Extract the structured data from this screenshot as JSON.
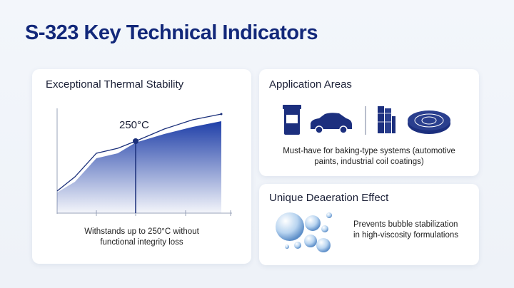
{
  "title": "S-323 Key Technical Indicators",
  "thermal": {
    "heading": "Exceptional Thermal Stability",
    "annotation": "250°C",
    "caption": [
      "Withstands up to 250°C without",
      "functional integrity loss"
    ]
  },
  "application": {
    "heading": "Application Areas",
    "description": [
      "Must-have for baking-type systems (automotive",
      "paints, industrial coil coatings)"
    ]
  },
  "deaeration": {
    "heading": "Unique Deaeration Effect",
    "description": [
      "Prevents bubble stabilization",
      "in high-viscosity formulations"
    ]
  }
}
